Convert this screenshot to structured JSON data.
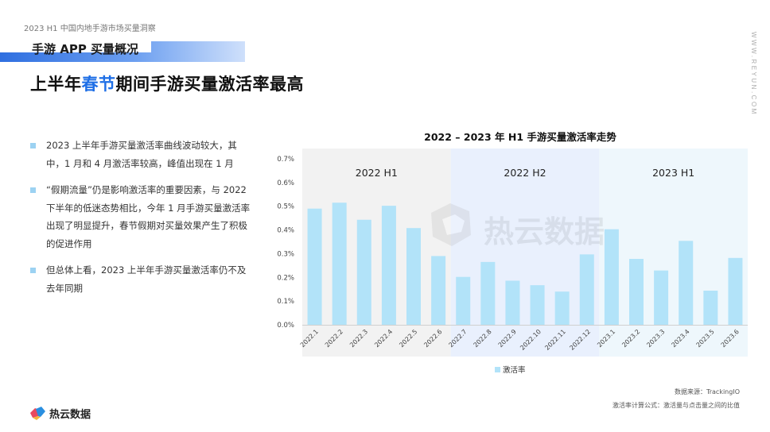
{
  "doc_label": "2023 H1 中国内地手游市场买量洞察",
  "section_title": "手游 APP 买量概况",
  "headline": {
    "before": "上半年",
    "highlight": "春节",
    "after": "期间手游买量激活率最高"
  },
  "side_url": "WWW.REYUN.COM",
  "bullets": [
    "2023 上半年手游买量激活率曲线波动较大，其中，1 月和 4 月激活率较高，峰值出现在 1 月",
    "“假期流量”仍是影响激活率的重要因素，与 2022 下半年的低迷态势相比，今年 1 月手游买量激活率出现了明显提升，春节假期对买量效果产生了积极的促进作用",
    "但总体上看，2023 上半年手游买量激活率仍不及去年同期"
  ],
  "watermark": "热云数据",
  "logo_text": "热云数据",
  "source": "数据来源：TrackingIO",
  "formula": "激活率计算公式：激活量与点击量之间的比值",
  "colors": {
    "bar": "#b2e3f9",
    "accent": "#1f6fe6",
    "band_h1_2022": "#f2f2f2",
    "band_h2_2022": "#e9f0fd",
    "band_h1_2023": "#eef7fc"
  },
  "chart_data": {
    "type": "bar",
    "title": "2022 – 2023 年 H1 手游买量激活率走势",
    "categories": [
      "2022.1",
      "2022.2",
      "2022.3",
      "2022.4",
      "2022.5",
      "2022.6",
      "2022.7",
      "2022.8",
      "2022.9",
      "2022.10",
      "2022.11",
      "2022.12",
      "2023.1",
      "2023.2",
      "2023.3",
      "2023.4",
      "2023.5",
      "2023.6"
    ],
    "series": [
      {
        "name": "激活率",
        "values": [
          0.49,
          0.515,
          0.443,
          0.502,
          0.408,
          0.29,
          0.202,
          0.265,
          0.186,
          0.167,
          0.14,
          0.297,
          0.403,
          0.278,
          0.229,
          0.354,
          0.144,
          0.282
        ]
      }
    ],
    "y_unit": "%",
    "ylim": [
      0,
      0.7
    ],
    "yticks": [
      "0.0%",
      "0.1%",
      "0.2%",
      "0.3%",
      "0.4%",
      "0.5%",
      "0.6%",
      "0.7%"
    ],
    "periods": [
      {
        "label": "2022 H1",
        "start": 0,
        "end": 5
      },
      {
        "label": "2022 H2",
        "start": 6,
        "end": 11
      },
      {
        "label": "2023 H1",
        "start": 12,
        "end": 17
      }
    ],
    "legend_position": "bottom-center",
    "grid": false
  }
}
